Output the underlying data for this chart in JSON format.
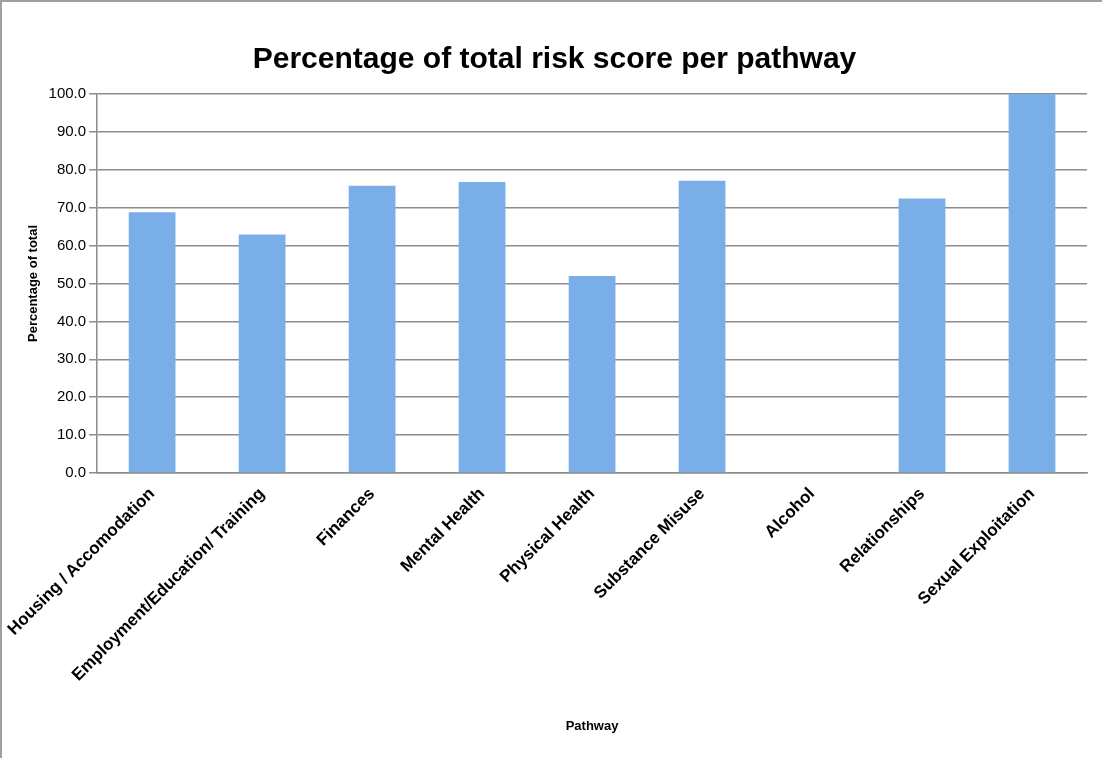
{
  "chart_data": {
    "type": "bar",
    "title": "Percentage of total risk score per pathway",
    "xlabel": "Pathway",
    "ylabel": "Percentage of total",
    "categories": [
      "Housing / Accomodation",
      "Employment/Education/ Training",
      "Finances",
      "Mental Health",
      "Physical Health",
      "Substance Misuse",
      "Alcohol",
      "Relationships",
      "Sexual Exploitation"
    ],
    "values": [
      68.8,
      62.9,
      75.8,
      76.8,
      52.0,
      77.1,
      0,
      72.4,
      100.0
    ],
    "color": "#7aaee8",
    "ylim": [
      0,
      100
    ],
    "yticks": [
      {
        "value": 0,
        "label": "0.0"
      },
      {
        "value": 10,
        "label": "10.0"
      },
      {
        "value": 20,
        "label": "20.0"
      },
      {
        "value": 30,
        "label": "30.0"
      },
      {
        "value": 40,
        "label": "40.0"
      },
      {
        "value": 50,
        "label": "50.0"
      },
      {
        "value": 60,
        "label": "60.0"
      },
      {
        "value": 70,
        "label": "70.0"
      },
      {
        "value": 80,
        "label": "80.0"
      },
      {
        "value": 90,
        "label": "90.0"
      },
      {
        "value": 100,
        "label": "100.0"
      }
    ],
    "grid": "y",
    "legend": false
  }
}
